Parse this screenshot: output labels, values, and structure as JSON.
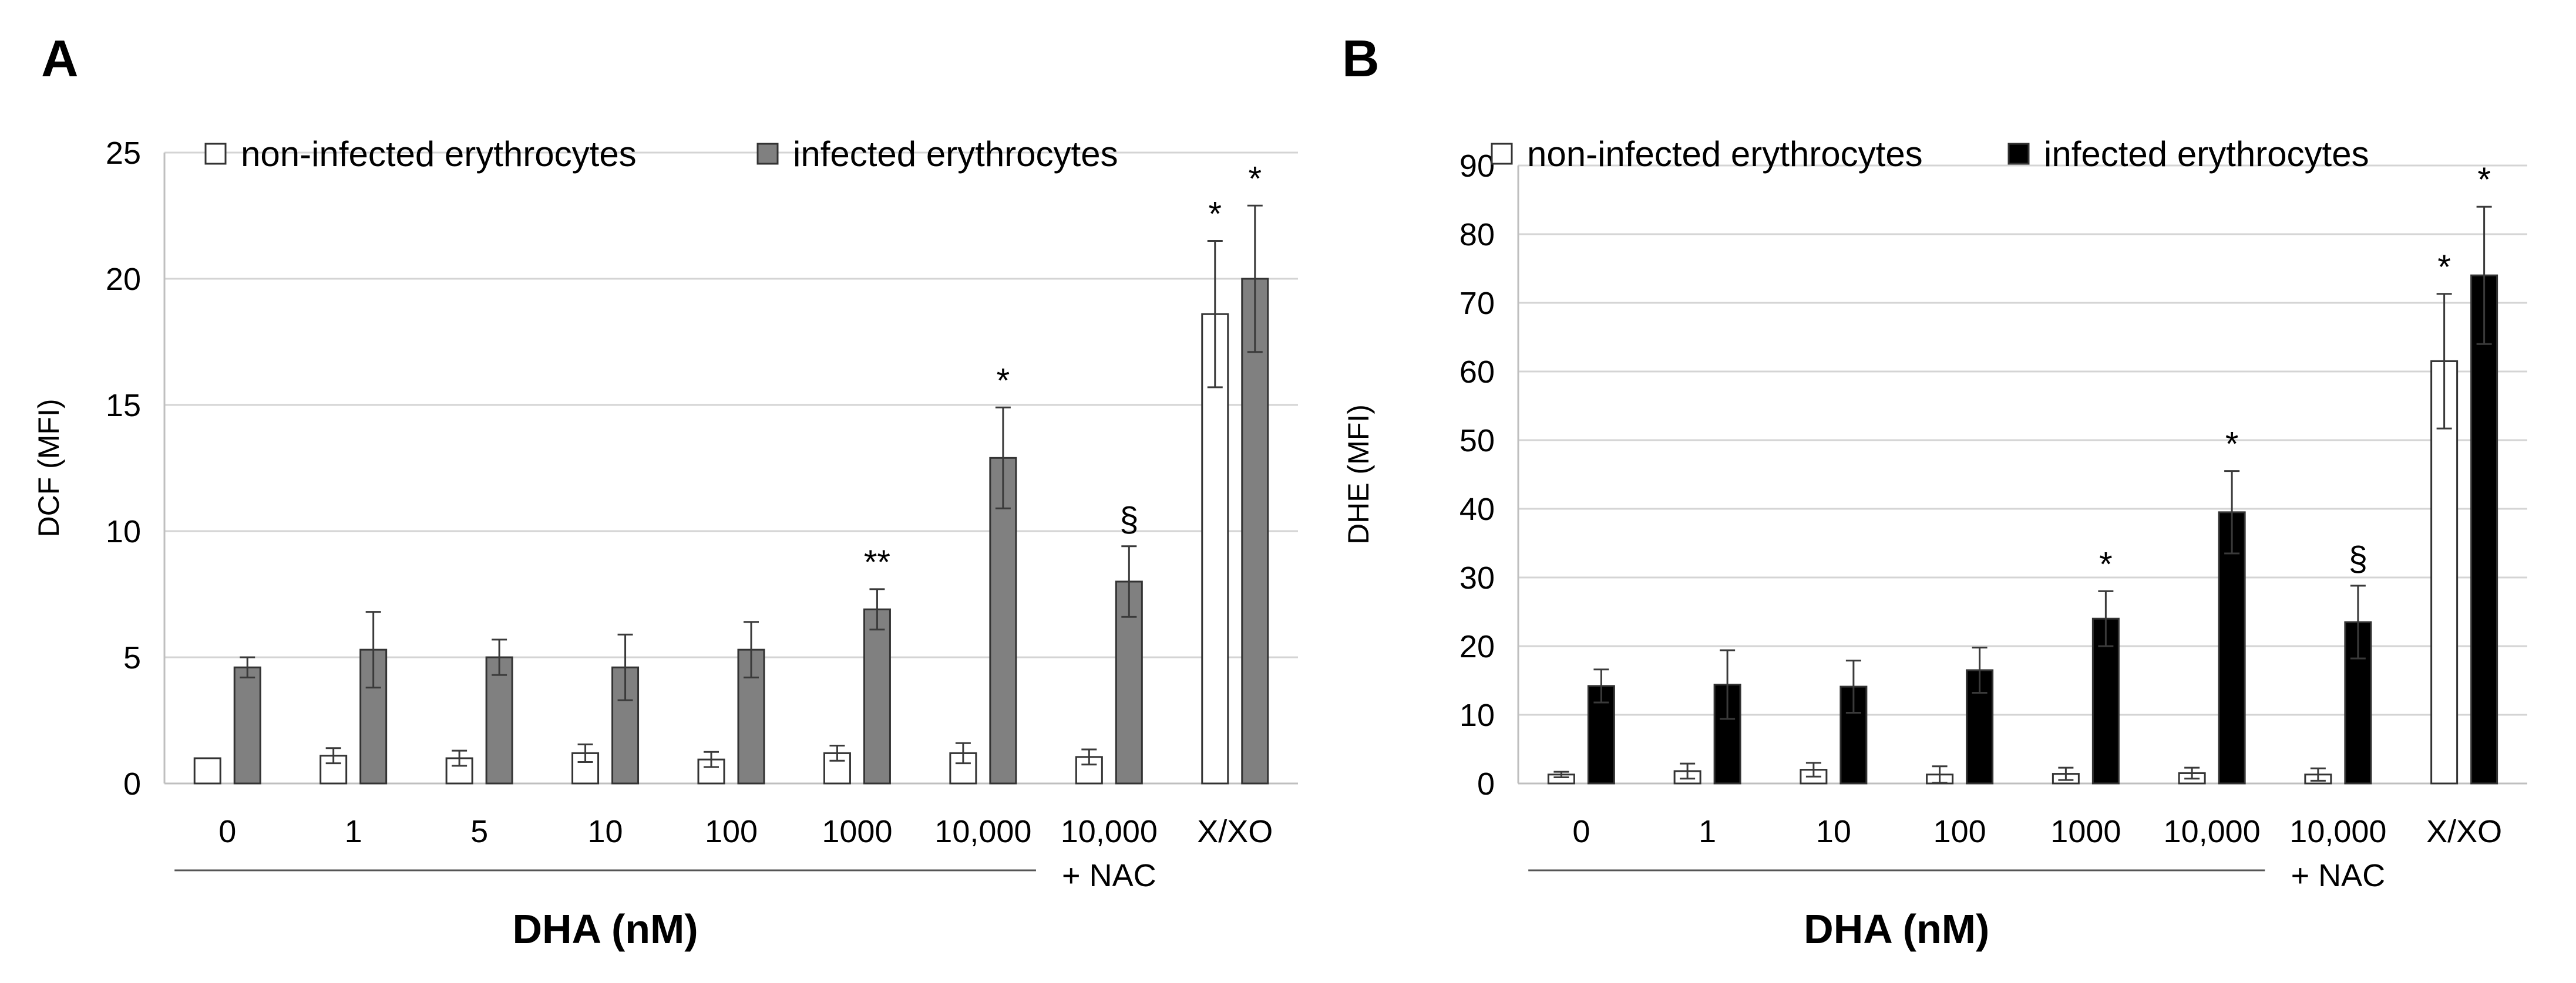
{
  "panels": [
    {
      "label": "A",
      "chart_data": {
        "type": "bar",
        "title": "",
        "ylabel": "DCF (MFI)",
        "xlabel": "DHA (nM)",
        "ylim": [
          0,
          25
        ],
        "yticks": [
          0,
          5,
          10,
          15,
          20,
          25
        ],
        "grid": true,
        "legend_position": "top",
        "categories": [
          [
            "0"
          ],
          [
            "1"
          ],
          [
            "5"
          ],
          [
            "10"
          ],
          [
            "100"
          ],
          [
            "1000"
          ],
          [
            "10,000"
          ],
          [
            "10,000",
            "+ NAC"
          ],
          [
            "X/XO"
          ]
        ],
        "dha_group_count": 7,
        "series": [
          {
            "name": "non-infected erythrocytes",
            "color": "#ffffff",
            "values": [
              1.0,
              1.1,
              1.0,
              1.2,
              0.95,
              1.2,
              1.2,
              1.05,
              18.6
            ],
            "errors": [
              0.0,
              0.3,
              0.3,
              0.35,
              0.3,
              0.3,
              0.4,
              0.3,
              2.9
            ],
            "annotations": [
              "",
              "",
              "",
              "",
              "",
              "",
              "",
              "",
              "*"
            ]
          },
          {
            "name": "infected erythrocytes",
            "color": "#808080",
            "values": [
              4.6,
              5.3,
              5.0,
              4.6,
              5.3,
              6.9,
              12.9,
              8.0,
              20.0
            ],
            "errors": [
              0.4,
              1.5,
              0.7,
              1.3,
              1.1,
              0.8,
              2.0,
              1.4,
              2.9
            ],
            "annotations": [
              "",
              "",
              "",
              "",
              "",
              "**",
              "*",
              "§",
              "*"
            ]
          }
        ]
      }
    },
    {
      "label": "B",
      "chart_data": {
        "type": "bar",
        "title": "",
        "ylabel": "DHE (MFI)",
        "xlabel": "DHA (nM)",
        "ylim": [
          0,
          90
        ],
        "yticks": [
          0,
          10,
          20,
          30,
          40,
          50,
          60,
          70,
          80,
          90
        ],
        "grid": true,
        "legend_position": "top",
        "categories": [
          [
            "0"
          ],
          [
            "1"
          ],
          [
            "10"
          ],
          [
            "100"
          ],
          [
            "1000"
          ],
          [
            "10,000"
          ],
          [
            "10,000",
            "+ NAC"
          ],
          [
            "X/XO"
          ]
        ],
        "dha_group_count": 6,
        "series": [
          {
            "name": "non-infected erythrocytes",
            "color": "#ffffff",
            "values": [
              1.3,
              1.8,
              2.0,
              1.3,
              1.4,
              1.5,
              1.3,
              61.5
            ],
            "errors": [
              0.4,
              1.1,
              1.0,
              1.2,
              0.9,
              0.8,
              0.9,
              9.8
            ],
            "annotations": [
              "",
              "",
              "",
              "",
              "",
              "",
              "",
              "*"
            ]
          },
          {
            "name": "infected erythrocytes",
            "color": "#000000",
            "values": [
              14.2,
              14.4,
              14.1,
              16.5,
              24.0,
              39.5,
              23.5,
              74.0
            ],
            "errors": [
              2.4,
              5.0,
              3.8,
              3.3,
              4.0,
              6.0,
              5.3,
              10.0
            ],
            "annotations": [
              "",
              "",
              "",
              "",
              "*",
              "*",
              "§",
              "*"
            ]
          }
        ]
      }
    }
  ]
}
